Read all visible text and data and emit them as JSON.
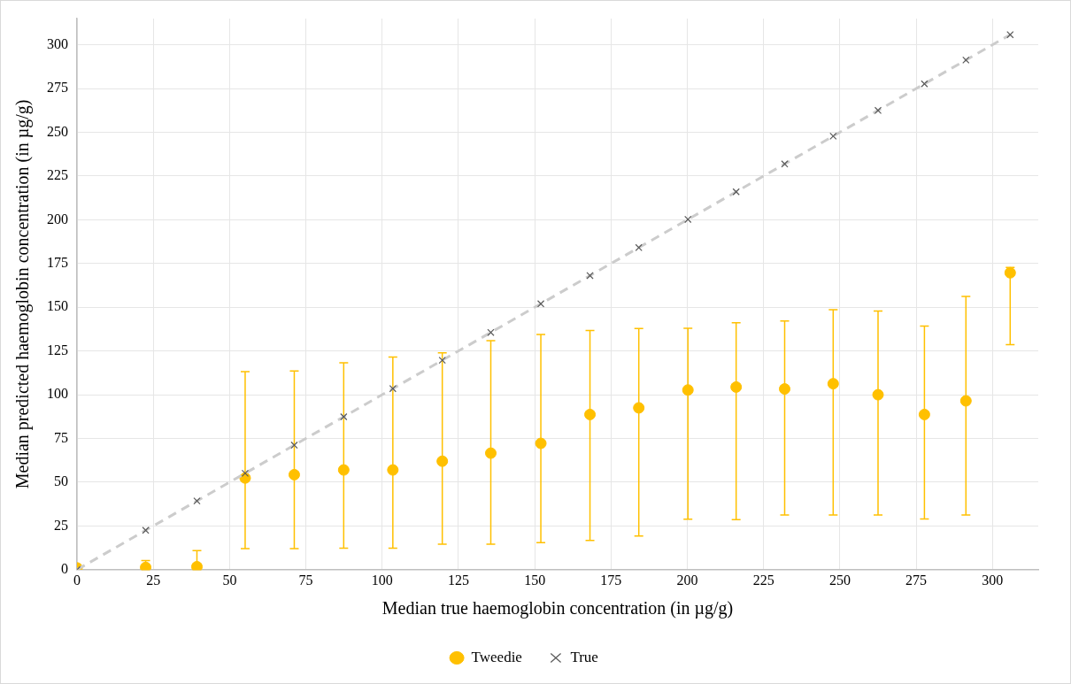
{
  "chart_data": {
    "type": "scatter",
    "xlabel": "Median true haemoglobin concentration (in µg/g)",
    "ylabel": "Median predicted haemoglobin concentration (in µg/g)",
    "xlim": [
      0,
      315
    ],
    "ylim": [
      0,
      315
    ],
    "xticks": [
      0,
      25,
      50,
      75,
      100,
      125,
      150,
      175,
      200,
      225,
      250,
      275,
      300
    ],
    "yticks": [
      0,
      25,
      50,
      75,
      100,
      125,
      150,
      175,
      200,
      225,
      250,
      275,
      300
    ],
    "grid": true,
    "legend": "bottom",
    "series": [
      {
        "name": "Tweedie",
        "type": "scatter",
        "marker": "circle",
        "color": "#ffc000",
        "x": [
          0,
          22.5,
          39.3,
          55.1,
          71.2,
          87.4,
          103.5,
          119.7,
          135.6,
          152,
          168.1,
          184.1,
          200.2,
          216,
          231.9,
          247.8,
          262.5,
          277.7,
          291.3,
          305.8
        ],
        "values": [
          1,
          1.3,
          1.7,
          52.4,
          54.3,
          57,
          57,
          62,
          66.6,
          72.2,
          88.7,
          92.5,
          102.7,
          104.4,
          103.3,
          106.3,
          100,
          88.7,
          96.5,
          169.7
        ],
        "errors": [
          null,
          [
            0,
            5.2
          ],
          [
            0,
            10.9
          ],
          [
            12.1,
            113.2
          ],
          [
            12.1,
            113.6
          ],
          [
            12.3,
            118.2
          ],
          [
            12.3,
            121.5
          ],
          [
            14.6,
            124
          ],
          [
            14.6,
            130.9
          ],
          [
            15.5,
            134.4
          ],
          [
            16.7,
            136.7
          ],
          [
            19.2,
            137.8
          ],
          [
            28.8,
            138
          ],
          [
            28.6,
            141.1
          ],
          [
            31.3,
            142.2
          ],
          [
            31.3,
            148.6
          ],
          [
            31.3,
            147.8
          ],
          [
            29,
            139.3
          ],
          [
            31.3,
            156.2
          ],
          [
            128.6,
            172.7
          ]
        ]
      },
      {
        "name": "True",
        "type": "line",
        "marker": "cross",
        "line_style": "dashed",
        "color": "#cccccc",
        "x": [
          0,
          22.5,
          39.3,
          55.1,
          71.2,
          87.4,
          103.5,
          119.7,
          135.6,
          152,
          168.1,
          184.1,
          200.2,
          216,
          231.9,
          247.8,
          262.5,
          277.7,
          291.3,
          305.8
        ],
        "values": [
          0,
          22.5,
          39.3,
          55.1,
          71.2,
          87.4,
          103.5,
          119.7,
          135.6,
          152,
          168.1,
          184.1,
          200.2,
          216,
          231.9,
          247.8,
          262.5,
          277.7,
          291.3,
          305.8
        ]
      }
    ]
  }
}
